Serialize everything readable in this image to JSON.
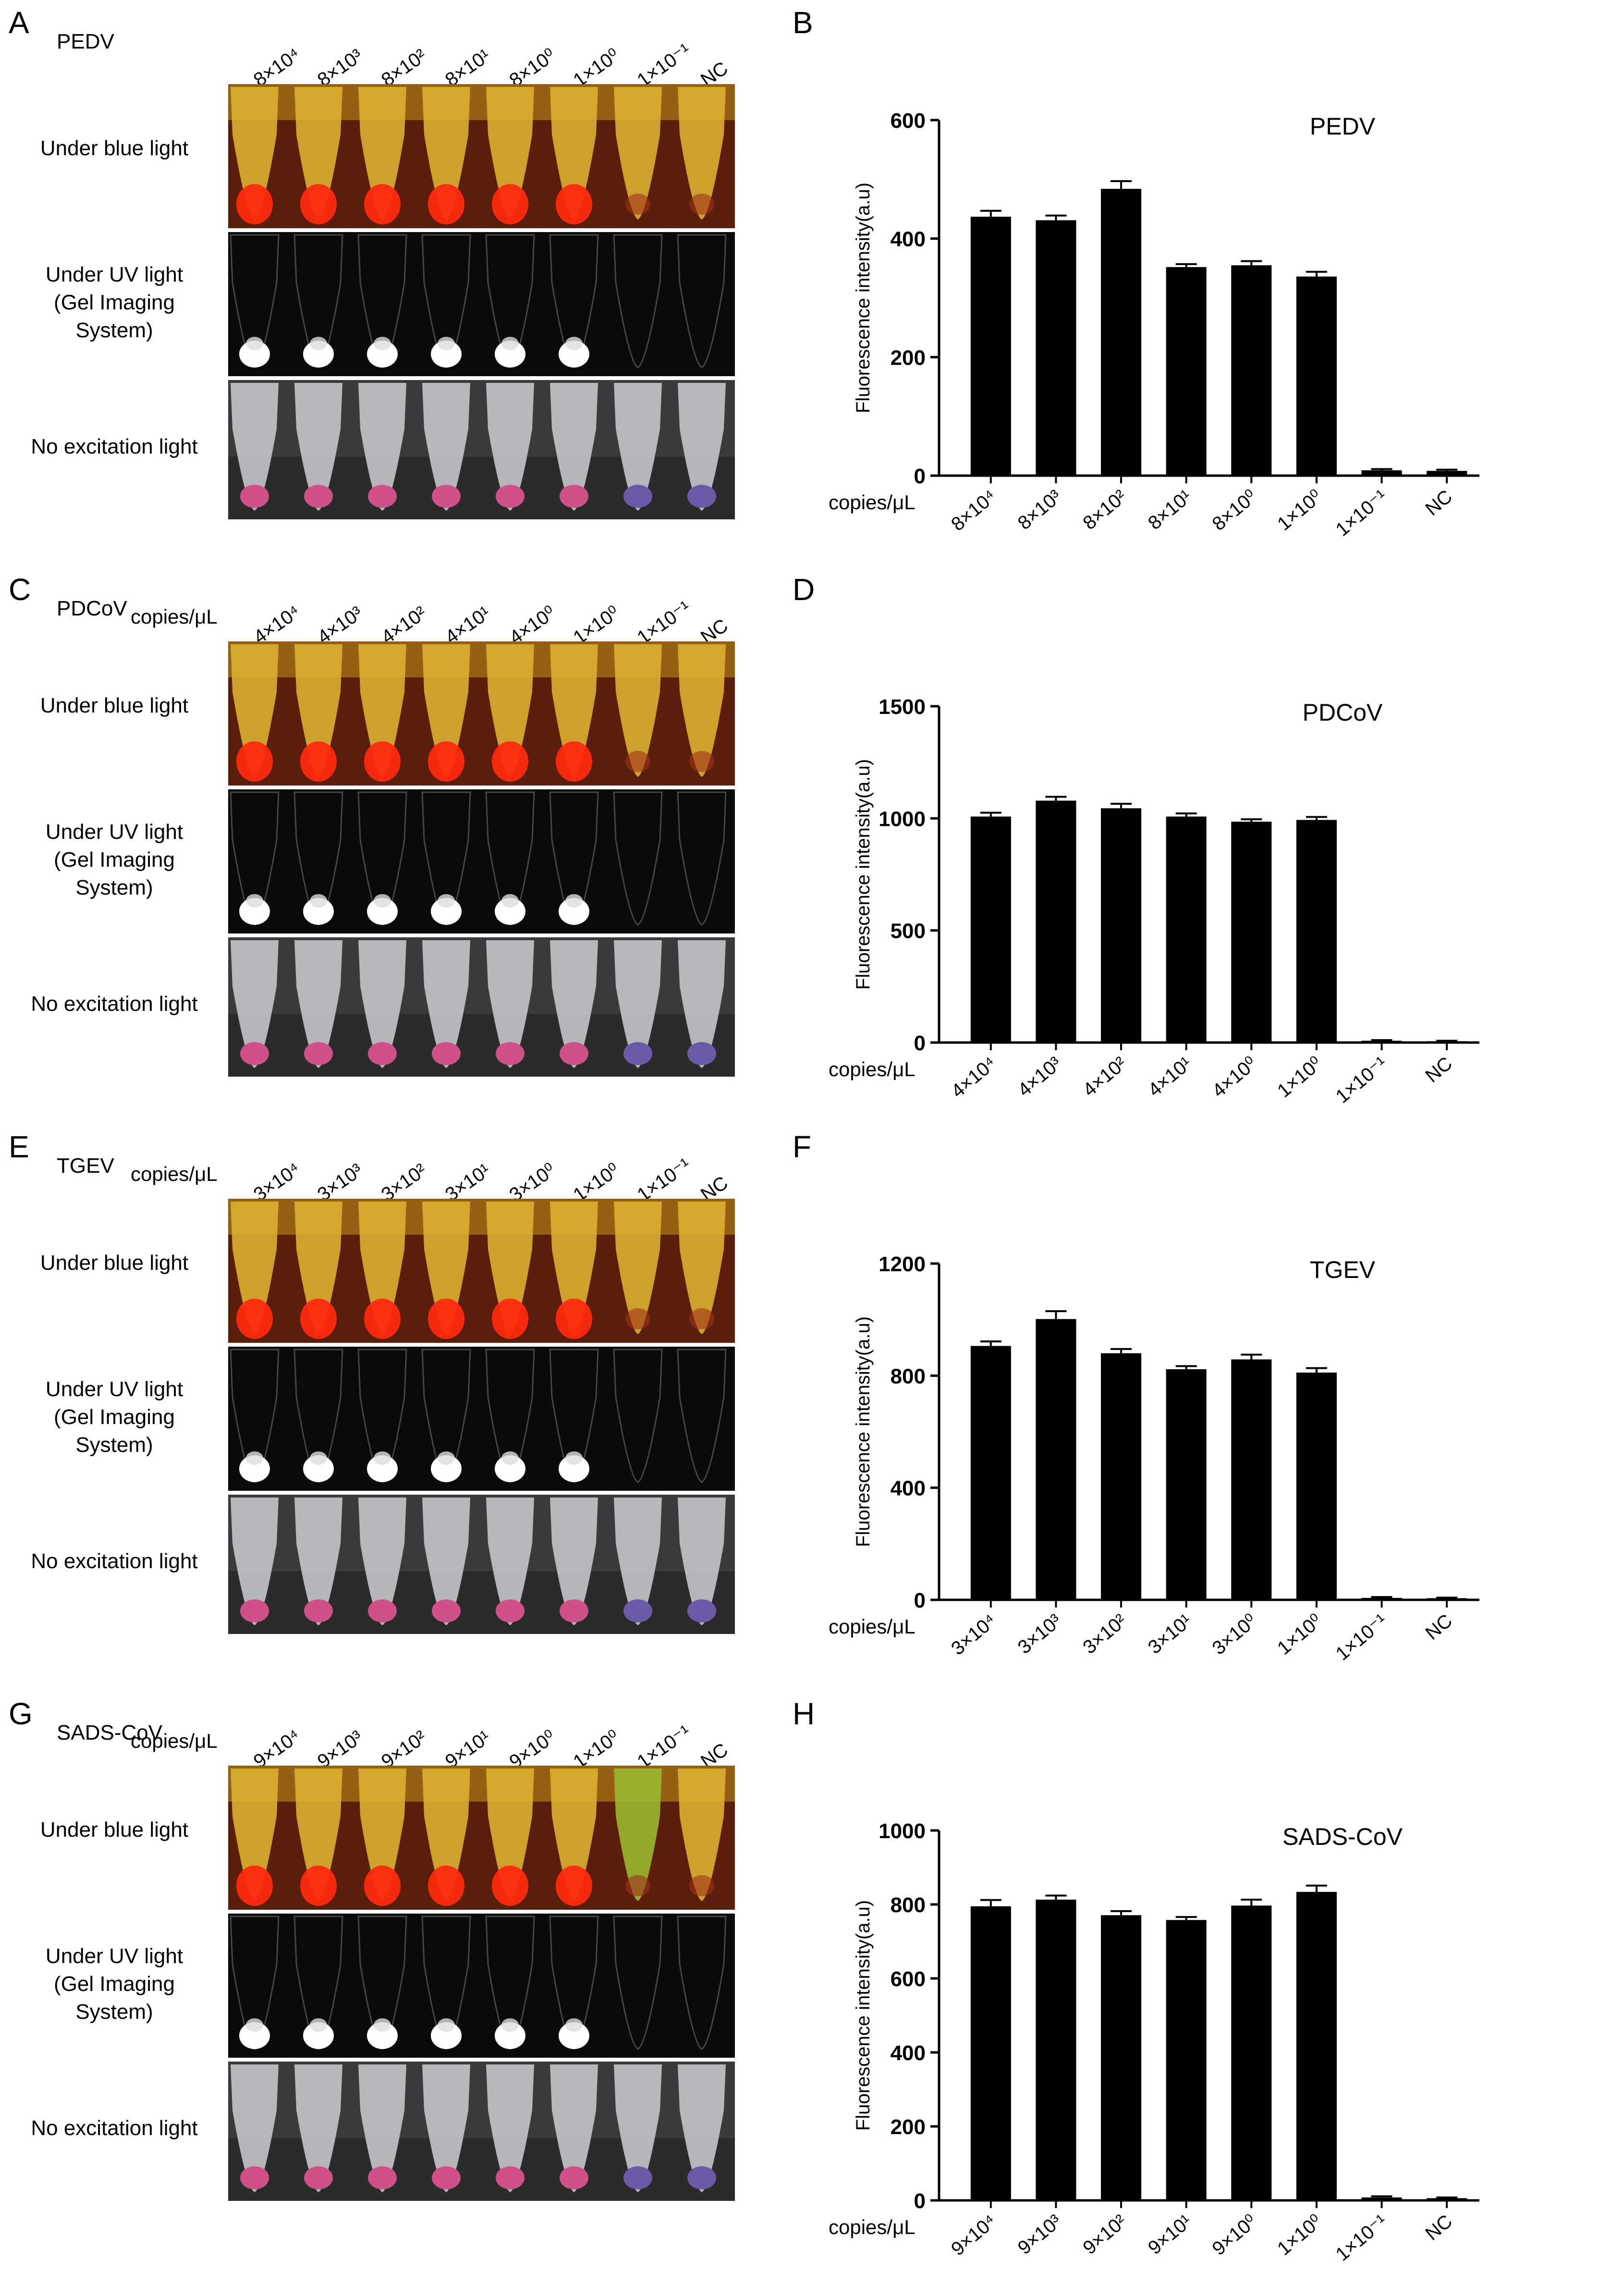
{
  "rows": {
    "blue": "Under blue light",
    "uv_l1": "Under UV light",
    "uv_l2": "(Gel Imaging",
    "uv_l3": "System)",
    "none": "No excitation light"
  },
  "copies_label": "copies/μL",
  "colors": {
    "blue_bg": "#5a1e0a",
    "tube_yellow": "#d9b030",
    "red_glow": "#ff2a10",
    "uv_bg": "#0a0a0a",
    "white_glow": "#ffffff",
    "pink": "#d0508a",
    "purple": "#6a5aa8",
    "bar": "#000000"
  },
  "panels": [
    {
      "letter_photo": "A",
      "letter_chart": "B",
      "virus": "PEDV",
      "conc": [
        "8×10⁴",
        "8×10³",
        "8×10²",
        "8×10¹",
        "8×10⁰",
        "1×10⁰",
        "1×10⁻¹",
        "NC"
      ],
      "positive": [
        true,
        true,
        true,
        true,
        true,
        true,
        false,
        false
      ],
      "green_tube": false
    },
    {
      "letter_photo": "C",
      "letter_chart": "D",
      "virus": "PDCoV",
      "conc": [
        "4×10⁴",
        "4×10³",
        "4×10²",
        "4×10¹",
        "4×10⁰",
        "1×10⁰",
        "1×10⁻¹",
        "NC"
      ],
      "positive": [
        true,
        true,
        true,
        true,
        true,
        true,
        false,
        false
      ],
      "green_tube": false
    },
    {
      "letter_photo": "E",
      "letter_chart": "F",
      "virus": "TGEV",
      "conc": [
        "3×10⁴",
        "3×10³",
        "3×10²",
        "3×10¹",
        "3×10⁰",
        "1×10⁰",
        "1×10⁻¹",
        "NC"
      ],
      "positive": [
        true,
        true,
        true,
        true,
        true,
        true,
        false,
        false
      ],
      "green_tube": false
    },
    {
      "letter_photo": "G",
      "letter_chart": "H",
      "virus": "SADS-CoV",
      "conc": [
        "9×10⁴",
        "9×10³",
        "9×10²",
        "9×10¹",
        "9×10⁰",
        "1×10⁰",
        "1×10⁻¹",
        "NC"
      ],
      "positive": [
        true,
        true,
        true,
        true,
        true,
        true,
        false,
        false
      ],
      "green_tube": true
    }
  ],
  "chart_data": [
    {
      "type": "bar",
      "title": "PEDV",
      "xlabel": "copies/μL",
      "ylabel": "Fluorescence intensity(a.u)",
      "categories": [
        "8×10⁴",
        "8×10³",
        "8×10²",
        "8×10¹",
        "8×10⁰",
        "1×10⁰",
        "1×10⁻¹",
        "NC"
      ],
      "values": [
        437,
        431,
        484,
        352,
        355,
        336,
        9,
        8
      ],
      "errors": [
        10,
        8,
        13,
        5,
        7,
        8,
        2,
        2
      ],
      "ylim": [
        0,
        600
      ],
      "yticks": [
        0,
        200,
        400,
        600
      ]
    },
    {
      "type": "bar",
      "title": "PDCoV",
      "xlabel": "copies/μL",
      "ylabel": "Fluorescence intensity(a.u)",
      "categories": [
        "4×10⁴",
        "4×10³",
        "4×10²",
        "4×10¹",
        "4×10⁰",
        "1×10⁰",
        "1×10⁻¹",
        "NC"
      ],
      "values": [
        1008,
        1079,
        1045,
        1008,
        985,
        993,
        8,
        6
      ],
      "errors": [
        17,
        17,
        20,
        14,
        11,
        13,
        3,
        2
      ],
      "ylim": [
        0,
        1500
      ],
      "yticks": [
        0,
        500,
        1000,
        1500
      ]
    },
    {
      "type": "bar",
      "title": "TGEV",
      "xlabel": "copies/μL",
      "ylabel": "Fluorescence intensity(a.u)",
      "categories": [
        "3×10⁴",
        "3×10³",
        "3×10²",
        "3×10¹",
        "3×10⁰",
        "1×10⁰",
        "1×10⁻¹",
        "NC"
      ],
      "values": [
        906,
        1002,
        880,
        823,
        858,
        811,
        7,
        6
      ],
      "errors": [
        16,
        28,
        15,
        11,
        17,
        16,
        3,
        2
      ],
      "ylim": [
        0,
        1200
      ],
      "yticks": [
        0,
        400,
        800,
        1200
      ]
    },
    {
      "type": "bar",
      "title": "SADS-CoV",
      "xlabel": "copies/μL",
      "ylabel": "Fluorescence intensity(a.u)",
      "categories": [
        "9×10⁴",
        "9×10³",
        "9×10²",
        "9×10¹",
        "9×10⁰",
        "1×10⁰",
        "1×10⁻¹",
        "NC"
      ],
      "values": [
        795,
        813,
        771,
        758,
        797,
        834,
        8,
        6
      ],
      "errors": [
        17,
        11,
        11,
        8,
        16,
        17,
        3,
        2
      ],
      "ylim": [
        0,
        1000
      ],
      "yticks": [
        0,
        200,
        400,
        600,
        800,
        1000
      ]
    }
  ]
}
